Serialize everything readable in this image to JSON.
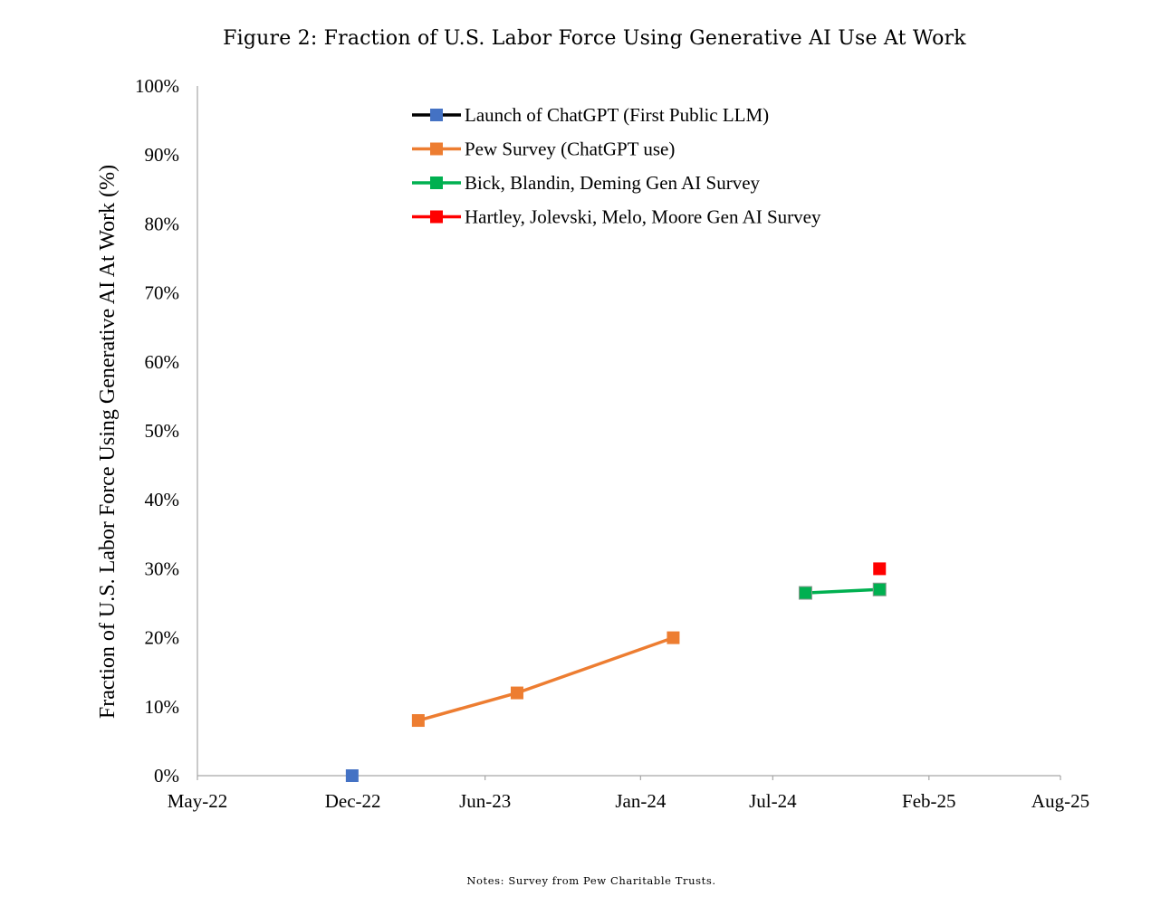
{
  "figure": {
    "title": "Figure 2: Fraction of U.S. Labor Force Using Generative AI Use At Work",
    "notes": "Notes: Survey from Pew Charitable Trusts."
  },
  "chart_data": {
    "type": "line",
    "title": "Figure 2: Fraction of U.S. Labor Force Using Generative AI Use At Work",
    "xlabel": "",
    "ylabel": "Fraction of U.S. Labor Force Using Generative AI At Work (%)",
    "x_axis": {
      "type": "date",
      "range": [
        "2022-05-01",
        "2025-08-01"
      ],
      "ticks": [
        {
          "date": "2022-05-01",
          "label": "May-22"
        },
        {
          "date": "2022-12-01",
          "label": "Dec-22"
        },
        {
          "date": "2023-06-01",
          "label": "Jun-23"
        },
        {
          "date": "2024-01-01",
          "label": "Jan-24"
        },
        {
          "date": "2024-07-01",
          "label": "Jul-24"
        },
        {
          "date": "2025-02-01",
          "label": "Feb-25"
        },
        {
          "date": "2025-08-01",
          "label": "Aug-25"
        }
      ]
    },
    "y_axis": {
      "range": [
        0,
        100
      ],
      "ticks": [
        {
          "value": 0,
          "label": "0%"
        },
        {
          "value": 10,
          "label": "10%"
        },
        {
          "value": 20,
          "label": "20%"
        },
        {
          "value": 30,
          "label": "30%"
        },
        {
          "value": 40,
          "label": "40%"
        },
        {
          "value": 50,
          "label": "50%"
        },
        {
          "value": 60,
          "label": "60%"
        },
        {
          "value": 70,
          "label": "70%"
        },
        {
          "value": 80,
          "label": "80%"
        },
        {
          "value": 90,
          "label": "90%"
        },
        {
          "value": 100,
          "label": "100%"
        }
      ]
    },
    "grid": false,
    "legend_position": "top-center",
    "series": [
      {
        "name": "Launch of ChatGPT (First Public LLM)",
        "line_color": "#000000",
        "marker_color": "#4472c4",
        "points": [
          {
            "x": "2022-11-30",
            "y": 0
          }
        ]
      },
      {
        "name": "Pew Survey (ChatGPT use)",
        "line_color": "#ed7d31",
        "marker_color": "#ed7d31",
        "points": [
          {
            "x": "2023-03-01",
            "y": 8
          },
          {
            "x": "2023-07-15",
            "y": 12
          },
          {
            "x": "2024-02-15",
            "y": 20
          }
        ]
      },
      {
        "name": "Bick, Blandin, Deming Gen AI Survey",
        "line_color": "#00b050",
        "marker_color": "#00b050",
        "points": [
          {
            "x": "2024-08-15",
            "y": 26.5
          },
          {
            "x": "2024-11-25",
            "y": 27
          }
        ]
      },
      {
        "name": "Hartley, Jolevski, Melo, Moore Gen AI Survey",
        "line_color": "#ff0000",
        "marker_color": "#ff0000",
        "points": [
          {
            "x": "2024-11-25",
            "y": 30
          }
        ]
      }
    ]
  }
}
